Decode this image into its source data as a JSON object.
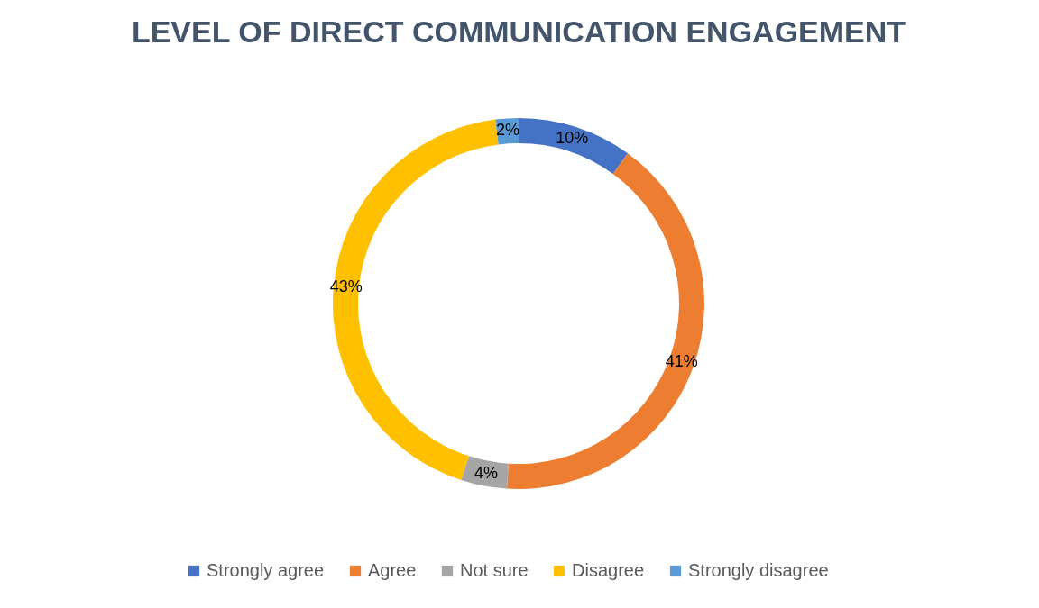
{
  "chart_data": {
    "type": "donut",
    "title": "LEVEL OF DIRECT COMMUNICATION ENGAGEMENT",
    "categories": [
      "Strongly agree",
      "Agree",
      "Not sure",
      "Disagree",
      "Strongly disagree"
    ],
    "values": [
      10,
      41,
      4,
      43,
      2
    ],
    "colors": [
      "#4472c4",
      "#ed7d31",
      "#a5a5a5",
      "#ffc000",
      "#5b9bd5"
    ],
    "value_labels": [
      "10%",
      "41%",
      "4%",
      "43%",
      "2%"
    ],
    "legend": "bottom"
  }
}
